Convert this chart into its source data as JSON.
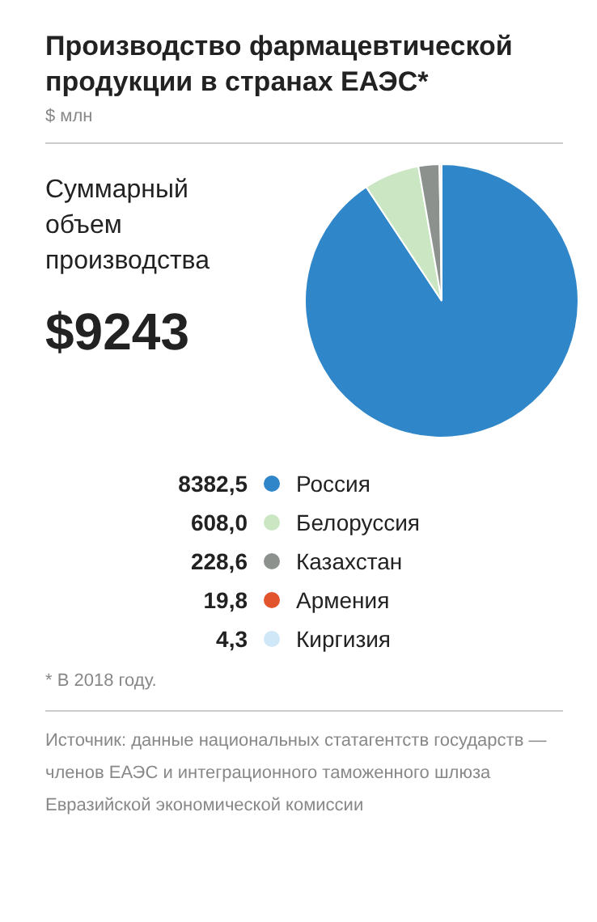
{
  "chart_data": {
    "type": "pie",
    "title": "Производство фармацевтической продукции в странах ЕАЭС*",
    "subtitle": "$ млн",
    "categories": [
      "Россия",
      "Белоруссия",
      "Казахстан",
      "Армения",
      "Киргизия"
    ],
    "values": [
      8382.5,
      608.0,
      228.6,
      19.8,
      4.3
    ],
    "value_labels": [
      "8382,5",
      "608,0",
      "228,6",
      "19,8",
      "4,3"
    ],
    "colors": [
      "#2f86c9",
      "#cbe6c3",
      "#8c918e",
      "#e2542c",
      "#cfe7f6"
    ],
    "legend": "bottom",
    "annotations": [
      "Суммарный объем производства",
      "$9243",
      "* В 2018 году.",
      "Источник: данные национальных статагентств государств — членов ЕАЭС и интеграционного таможенного шлюза Евразийской экономической комиссии"
    ]
  }
}
